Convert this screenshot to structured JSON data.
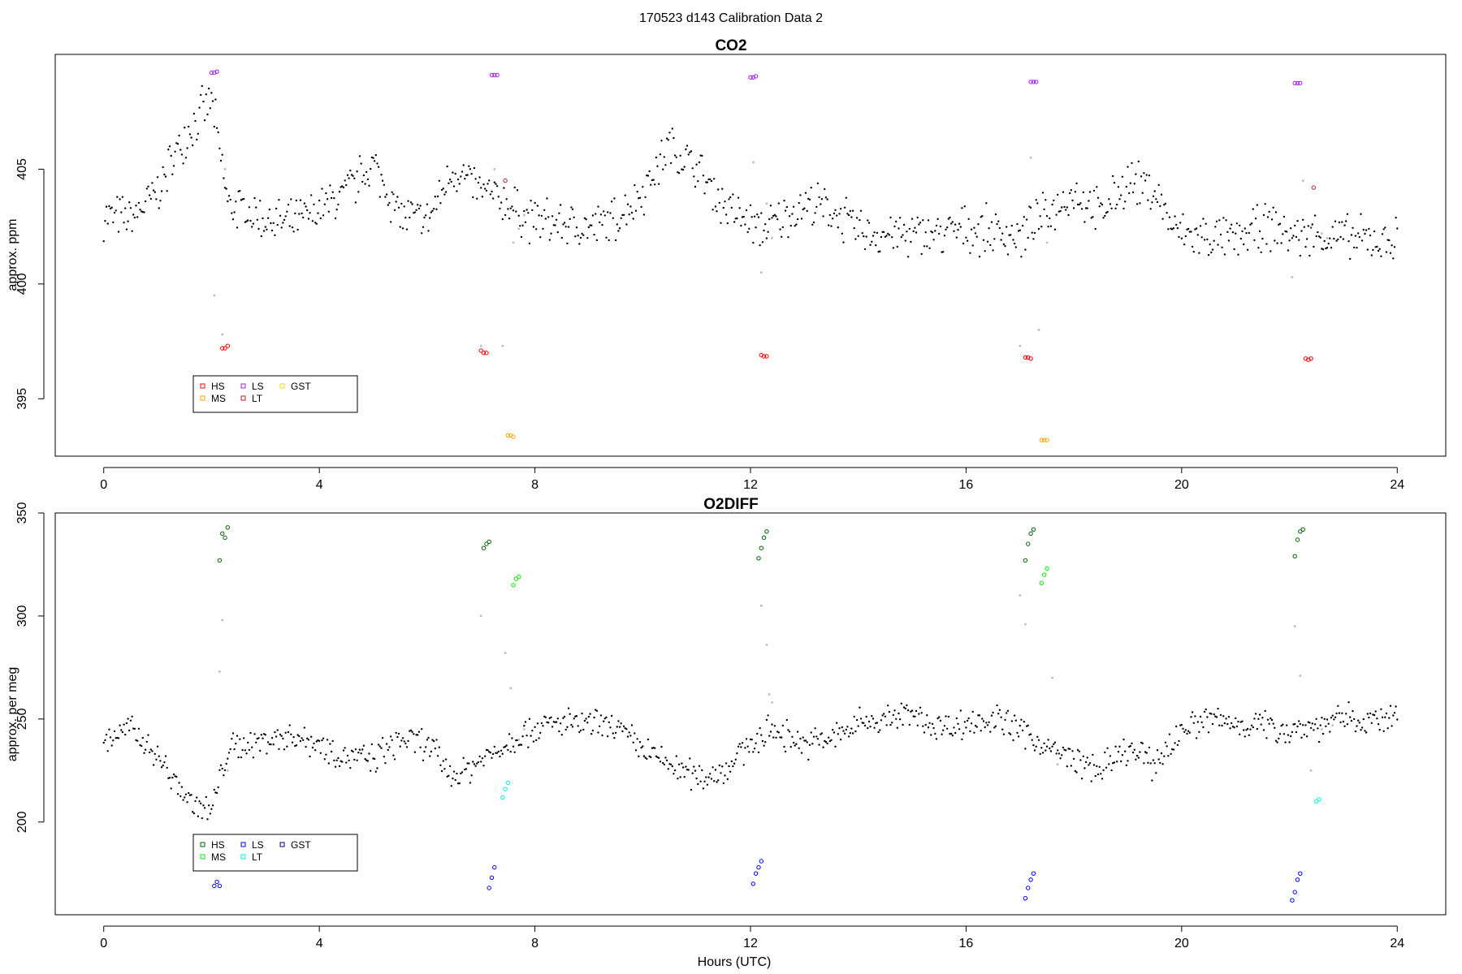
{
  "figure": {
    "suptitle": "170523   d143   Calibration Data 2",
    "xlabel": "Hours (UTC)"
  },
  "chart_data": [
    {
      "type": "scatter",
      "title": "CO2",
      "xlabel": "",
      "ylabel": "approx. ppm",
      "xlim": [
        -0.9,
        24.9
      ],
      "ylim": [
        392.5,
        410
      ],
      "xticks": [
        0,
        4,
        8,
        12,
        16,
        20,
        24
      ],
      "yticks": [
        395,
        400,
        405
      ],
      "grid": false,
      "legend": {
        "placement": "bottom-left",
        "entries": [
          {
            "label": "HS",
            "color": "#ff0000"
          },
          {
            "label": "MS",
            "color": "#ffa500"
          },
          {
            "label": "LS",
            "color": "#a020f0"
          },
          {
            "label": "LT",
            "color": "#b22222"
          },
          {
            "label": "GST",
            "color": "#ffd700"
          }
        ]
      },
      "ambient_profile": {
        "color": "#000000",
        "x": [
          0,
          0.5,
          1.0,
          1.5,
          2.0,
          2.3,
          3.0,
          3.5,
          4.0,
          4.5,
          5.0,
          5.5,
          6.0,
          6.5,
          7.0,
          7.5,
          7.9,
          8.5,
          9.0,
          9.5,
          10.0,
          10.5,
          11.0,
          11.5,
          12.0,
          12.3,
          13.0,
          13.5,
          14.0,
          15.0,
          15.5,
          16.0,
          16.5,
          17.0,
          17.4,
          18.0,
          18.5,
          19.0,
          19.5,
          19.9,
          20.5,
          21.0,
          21.5,
          22.0,
          22.5,
          23.0,
          23.5,
          24.0
        ],
        "y": [
          403.0,
          402.8,
          404.0,
          406.5,
          408.0,
          403.5,
          402.8,
          402.6,
          403.2,
          404.0,
          405.2,
          403.0,
          402.7,
          405.0,
          404.0,
          403.5,
          402.8,
          402.6,
          402.4,
          402.8,
          404.0,
          406.0,
          405.0,
          403.5,
          402.6,
          402.4,
          403.5,
          403.2,
          402.3,
          402.1,
          402.2,
          402.4,
          402.3,
          402.1,
          402.8,
          404.0,
          403.0,
          404.5,
          404.0,
          402.2,
          402.0,
          401.9,
          402.5,
          402.2,
          402.1,
          402.0,
          401.9,
          401.9
        ],
        "scatter_amplitude": 1.2
      },
      "transition_points": {
        "color": "#bbbbbb",
        "x": [
          2.05,
          2.2,
          2.25,
          7.0,
          7.25,
          7.4,
          7.6,
          7.7,
          7.8,
          12.05,
          12.2,
          12.3,
          12.4,
          17.0,
          17.2,
          17.35,
          17.5,
          22.05,
          22.25,
          22.4,
          22.6,
          22.7
        ],
        "y": [
          399.5,
          397.8,
          405.0,
          397.3,
          405.0,
          397.3,
          401.8,
          402.4,
          403.0,
          405.3,
          400.5,
          403.5,
          402.0,
          397.3,
          405.5,
          398.0,
          401.8,
          400.3,
          404.5,
          402.5,
          402.2,
          402.0
        ]
      },
      "calibration": [
        {
          "label": "HS",
          "color": "#ff0000",
          "points": [
            [
              2.2,
              397.2
            ],
            [
              2.25,
              397.2
            ],
            [
              2.3,
              397.3
            ],
            [
              7.0,
              397.1
            ],
            [
              7.05,
              397.0
            ],
            [
              7.1,
              397.0
            ],
            [
              12.2,
              396.9
            ],
            [
              12.25,
              396.85
            ],
            [
              12.3,
              396.85
            ],
            [
              17.1,
              396.8
            ],
            [
              17.15,
              396.8
            ],
            [
              17.2,
              396.75
            ],
            [
              22.3,
              396.75
            ],
            [
              22.35,
              396.7
            ],
            [
              22.4,
              396.75
            ]
          ]
        },
        {
          "label": "MS",
          "color": "#ffa500",
          "points": [
            [
              7.5,
              393.4
            ],
            [
              7.55,
              393.4
            ],
            [
              7.6,
              393.35
            ],
            [
              17.4,
              393.2
            ],
            [
              17.45,
              393.2
            ],
            [
              17.5,
              393.2
            ]
          ]
        },
        {
          "label": "LS",
          "color": "#a020f0",
          "points": [
            [
              2.0,
              409.2
            ],
            [
              2.05,
              409.2
            ],
            [
              2.1,
              409.25
            ],
            [
              7.2,
              409.1
            ],
            [
              7.25,
              409.1
            ],
            [
              7.3,
              409.1
            ],
            [
              12.0,
              409.0
            ],
            [
              12.05,
              409.0
            ],
            [
              12.1,
              409.05
            ],
            [
              17.2,
              408.8
            ],
            [
              17.25,
              408.8
            ],
            [
              17.3,
              408.8
            ],
            [
              22.1,
              408.75
            ],
            [
              22.15,
              408.75
            ],
            [
              22.2,
              408.75
            ]
          ]
        },
        {
          "label": "LT",
          "color": "#b22222",
          "points": [
            [
              7.45,
              404.5
            ],
            [
              22.45,
              404.2
            ]
          ]
        }
      ]
    },
    {
      "type": "scatter",
      "title": "O2DIFF",
      "xlabel": "Hours (UTC)",
      "ylabel": "approx. per meg",
      "xlim": [
        -0.9,
        24.9
      ],
      "ylim": [
        155,
        350
      ],
      "xticks": [
        0,
        4,
        8,
        12,
        16,
        20,
        24
      ],
      "yticks": [
        200,
        250,
        300,
        350
      ],
      "grid": false,
      "legend": {
        "placement": "bottom-left",
        "entries": [
          {
            "label": "HS",
            "color": "#006400"
          },
          {
            "label": "MS",
            "color": "#00ee00"
          },
          {
            "label": "LS",
            "color": "#0000ff"
          },
          {
            "label": "LT",
            "color": "#00eeee"
          },
          {
            "label": "GST",
            "color": "#00008b"
          }
        ]
      },
      "ambient_profile": {
        "color": "#000000",
        "x": [
          0,
          0.5,
          1.0,
          1.3,
          1.6,
          2.0,
          2.3,
          3.0,
          3.5,
          4.0,
          4.5,
          5.0,
          5.5,
          6.0,
          6.5,
          7.0,
          7.9,
          8.5,
          9.0,
          9.5,
          10.0,
          10.5,
          11.0,
          11.5,
          12.0,
          12.4,
          13.0,
          13.5,
          14.0,
          15.0,
          15.5,
          16.0,
          16.5,
          17.0,
          17.5,
          18.0,
          18.5,
          19.0,
          19.5,
          20.0,
          20.5,
          21.0,
          21.5,
          22.0,
          22.5,
          23.0,
          23.5,
          24.0
        ],
        "y": [
          240,
          245,
          232,
          220,
          210,
          205,
          235,
          240,
          242,
          238,
          232,
          230,
          240,
          238,
          222,
          230,
          245,
          248,
          247,
          246,
          235,
          228,
          222,
          225,
          238,
          245,
          238,
          240,
          248,
          252,
          246,
          248,
          250,
          245,
          236,
          230,
          225,
          235,
          228,
          245,
          250,
          248,
          247,
          245,
          247,
          250,
          249,
          250
        ],
        "scatter_amplitude": 9
      },
      "transition_points": {
        "color": "#bbbbbb",
        "x": [
          2.15,
          2.2,
          2.3,
          7.0,
          7.45,
          7.55,
          7.7,
          7.8,
          12.2,
          12.3,
          12.35,
          12.4,
          17.0,
          17.1,
          17.6,
          17.7,
          22.1,
          22.2,
          22.4,
          22.6,
          22.8
        ],
        "y": [
          273,
          298,
          225,
          300,
          282,
          265,
          240,
          245,
          305,
          286,
          262,
          258,
          310,
          296,
          270,
          228,
          295,
          271,
          225,
          245,
          247
        ]
      },
      "calibration": [
        {
          "label": "HS",
          "color": "#006400",
          "points": [
            [
              2.15,
              327
            ],
            [
              2.2,
              340
            ],
            [
              2.25,
              338
            ],
            [
              2.3,
              343
            ],
            [
              7.05,
              333
            ],
            [
              7.1,
              335
            ],
            [
              7.15,
              336
            ],
            [
              12.15,
              328
            ],
            [
              12.2,
              333
            ],
            [
              12.25,
              338
            ],
            [
              12.3,
              341
            ],
            [
              17.1,
              327
            ],
            [
              17.15,
              335
            ],
            [
              17.2,
              340
            ],
            [
              17.25,
              342
            ],
            [
              22.1,
              329
            ],
            [
              22.15,
              337
            ],
            [
              22.2,
              341
            ],
            [
              22.25,
              342
            ]
          ]
        },
        {
          "label": "MS",
          "color": "#00ee00",
          "points": [
            [
              7.6,
              315
            ],
            [
              7.65,
              318
            ],
            [
              7.7,
              319
            ],
            [
              17.4,
              316
            ],
            [
              17.45,
              320
            ],
            [
              17.5,
              323
            ]
          ]
        },
        {
          "label": "LS",
          "color": "#0000ff",
          "points": [
            [
              2.05,
              169
            ],
            [
              2.1,
              171
            ],
            [
              2.15,
              169
            ],
            [
              7.15,
              168
            ],
            [
              7.2,
              173
            ],
            [
              7.25,
              178
            ],
            [
              12.05,
              170
            ],
            [
              12.1,
              175
            ],
            [
              12.15,
              178
            ],
            [
              12.2,
              181
            ],
            [
              17.1,
              163
            ],
            [
              17.15,
              168
            ],
            [
              17.2,
              172
            ],
            [
              17.25,
              175
            ],
            [
              22.05,
              162
            ],
            [
              22.1,
              166
            ],
            [
              22.15,
              172
            ],
            [
              22.2,
              175
            ]
          ]
        },
        {
          "label": "LT",
          "color": "#00eeee",
          "points": [
            [
              7.4,
              212
            ],
            [
              7.45,
              216
            ],
            [
              7.5,
              219
            ],
            [
              22.5,
              210
            ],
            [
              22.55,
              211
            ]
          ]
        }
      ]
    }
  ]
}
